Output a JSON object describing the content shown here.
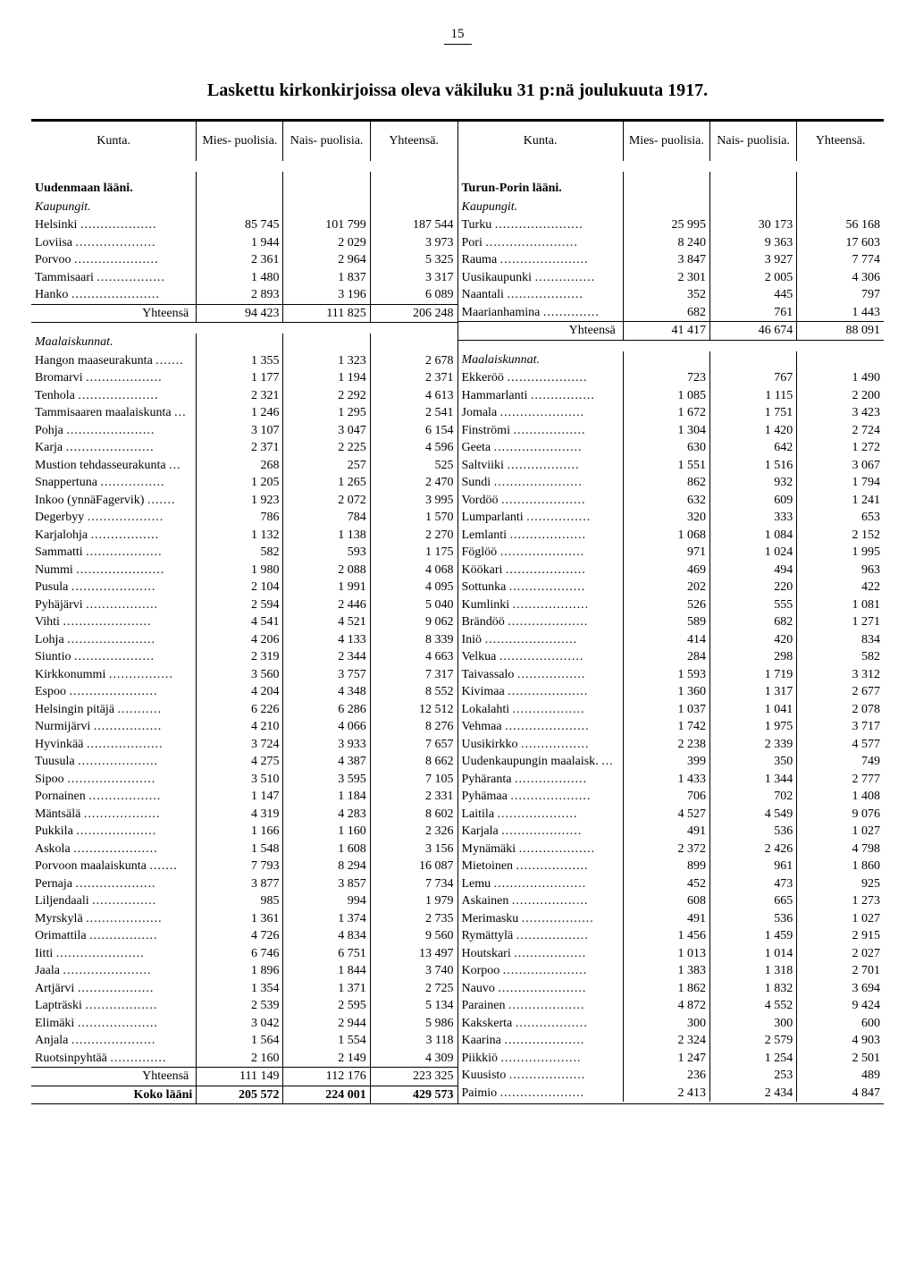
{
  "page_number": "15",
  "title": "Laskettu kirkonkirjoissa oleva väkiluku 31 p:nä joulukuuta 1917.",
  "headers": {
    "kunta": "Kunta.",
    "mies": "Mies-\npuolisia.",
    "nais": "Nais-\npuolisia.",
    "yht": "Yhteensä."
  },
  "labels": {
    "yhteensa": "Yhteensä",
    "koko": "Koko lääni"
  },
  "left": {
    "section1_head": "Uudenmaan lääni.",
    "section1_sub": "Kaupungit.",
    "cities": [
      {
        "n": "Helsinki",
        "m": "85 745",
        "f": "101 799",
        "t": "187 544"
      },
      {
        "n": "Loviisa",
        "m": "1 944",
        "f": "2 029",
        "t": "3 973"
      },
      {
        "n": "Porvoo",
        "m": "2 361",
        "f": "2 964",
        "t": "5 325"
      },
      {
        "n": "Tammisaari",
        "m": "1 480",
        "f": "1 837",
        "t": "3 317"
      },
      {
        "n": "Hanko",
        "m": "2 893",
        "f": "3 196",
        "t": "6 089"
      }
    ],
    "cities_total": {
      "m": "94 423",
      "f": "111 825",
      "t": "206 248"
    },
    "section2_sub": "Maalaiskunnat.",
    "rural": [
      {
        "n": "Hangon maaseurakunta",
        "m": "1 355",
        "f": "1 323",
        "t": "2 678"
      },
      {
        "n": "Bromarvi",
        "m": "1 177",
        "f": "1 194",
        "t": "2 371"
      },
      {
        "n": "Tenhola",
        "m": "2 321",
        "f": "2 292",
        "t": "4 613"
      },
      {
        "n": "Tammisaaren maalaiskunta",
        "m": "1 246",
        "f": "1 295",
        "t": "2 541"
      },
      {
        "n": "Pohja",
        "m": "3 107",
        "f": "3 047",
        "t": "6 154"
      },
      {
        "n": "Karja",
        "m": "2 371",
        "f": "2 225",
        "t": "4 596"
      },
      {
        "n": "Mustion tehdasseurakunta",
        "m": "268",
        "f": "257",
        "t": "525"
      },
      {
        "n": "Snappertuna",
        "m": "1 205",
        "f": "1 265",
        "t": "2 470"
      },
      {
        "n": "Inkoo (ynnäFagervik)",
        "m": "1 923",
        "f": "2 072",
        "t": "3 995"
      },
      {
        "n": "Degerbyy",
        "m": "786",
        "f": "784",
        "t": "1 570"
      },
      {
        "n": "Karjalohja",
        "m": "1 132",
        "f": "1 138",
        "t": "2 270"
      },
      {
        "n": "Sammatti",
        "m": "582",
        "f": "593",
        "t": "1 175"
      },
      {
        "n": "Nummi",
        "m": "1 980",
        "f": "2 088",
        "t": "4 068"
      },
      {
        "n": "Pusula",
        "m": "2 104",
        "f": "1 991",
        "t": "4 095"
      },
      {
        "n": "Pyhäjärvi",
        "m": "2 594",
        "f": "2 446",
        "t": "5 040"
      },
      {
        "n": "Vihti",
        "m": "4 541",
        "f": "4 521",
        "t": "9 062"
      },
      {
        "n": "Lohja",
        "m": "4 206",
        "f": "4 133",
        "t": "8 339"
      },
      {
        "n": "Siuntio",
        "m": "2 319",
        "f": "2 344",
        "t": "4 663"
      },
      {
        "n": "Kirkkonummi",
        "m": "3 560",
        "f": "3 757",
        "t": "7 317"
      },
      {
        "n": "Espoo",
        "m": "4 204",
        "f": "4 348",
        "t": "8 552"
      },
      {
        "n": "Helsingin pitäjä",
        "m": "6 226",
        "f": "6 286",
        "t": "12 512"
      },
      {
        "n": "Nurmijärvi",
        "m": "4 210",
        "f": "4 066",
        "t": "8 276"
      },
      {
        "n": "Hyvinkää",
        "m": "3 724",
        "f": "3 933",
        "t": "7 657"
      },
      {
        "n": "Tuusula",
        "m": "4 275",
        "f": "4 387",
        "t": "8 662"
      },
      {
        "n": "Sipoo",
        "m": "3 510",
        "f": "3 595",
        "t": "7 105"
      },
      {
        "n": "Pornainen",
        "m": "1 147",
        "f": "1 184",
        "t": "2 331"
      },
      {
        "n": "Mäntsälä",
        "m": "4 319",
        "f": "4 283",
        "t": "8 602"
      },
      {
        "n": "Pukkila",
        "m": "1 166",
        "f": "1 160",
        "t": "2 326"
      },
      {
        "n": "Askola",
        "m": "1 548",
        "f": "1 608",
        "t": "3 156"
      },
      {
        "n": "Porvoon maalaiskunta",
        "m": "7 793",
        "f": "8 294",
        "t": "16 087"
      },
      {
        "n": "Pernaja",
        "m": "3 877",
        "f": "3 857",
        "t": "7 734"
      },
      {
        "n": "Liljendaali",
        "m": "985",
        "f": "994",
        "t": "1 979"
      },
      {
        "n": "Myrskylä",
        "m": "1 361",
        "f": "1 374",
        "t": "2 735"
      },
      {
        "n": "Orimattila",
        "m": "4 726",
        "f": "4 834",
        "t": "9 560"
      },
      {
        "n": "Iitti",
        "m": "6 746",
        "f": "6 751",
        "t": "13 497"
      },
      {
        "n": "Jaala",
        "m": "1 896",
        "f": "1 844",
        "t": "3 740"
      },
      {
        "n": "Artjärvi",
        "m": "1 354",
        "f": "1 371",
        "t": "2 725"
      },
      {
        "n": "Lapträski",
        "m": "2 539",
        "f": "2 595",
        "t": "5 134"
      },
      {
        "n": "Elimäki",
        "m": "3 042",
        "f": "2 944",
        "t": "5 986"
      },
      {
        "n": "Anjala",
        "m": "1 564",
        "f": "1 554",
        "t": "3 118"
      },
      {
        "n": "Ruotsinpyhtää",
        "m": "2 160",
        "f": "2 149",
        "t": "4 309"
      }
    ],
    "rural_total": {
      "m": "111 149",
      "f": "112 176",
      "t": "223 325"
    },
    "koko": {
      "m": "205 572",
      "f": "224 001",
      "t": "429 573"
    }
  },
  "right": {
    "section1_head": "Turun-Porin lääni.",
    "section1_sub": "Kaupungit.",
    "cities": [
      {
        "n": "Turku",
        "m": "25 995",
        "f": "30 173",
        "t": "56 168"
      },
      {
        "n": "Pori",
        "m": "8 240",
        "f": "9 363",
        "t": "17 603"
      },
      {
        "n": "Rauma",
        "m": "3 847",
        "f": "3 927",
        "t": "7 774"
      },
      {
        "n": "Uusikaupunki",
        "m": "2 301",
        "f": "2 005",
        "t": "4 306"
      },
      {
        "n": "Naantali",
        "m": "352",
        "f": "445",
        "t": "797"
      },
      {
        "n": "Maarianhamina",
        "m": "682",
        "f": "761",
        "t": "1 443"
      }
    ],
    "cities_total": {
      "m": "41 417",
      "f": "46 674",
      "t": "88 091"
    },
    "section2_sub": "Maalaiskunnat.",
    "rural": [
      {
        "n": "Ekkeröö",
        "m": "723",
        "f": "767",
        "t": "1 490"
      },
      {
        "n": "Hammarlanti",
        "m": "1 085",
        "f": "1 115",
        "t": "2 200"
      },
      {
        "n": "Jomala",
        "m": "1 672",
        "f": "1 751",
        "t": "3 423"
      },
      {
        "n": "Finströmi",
        "m": "1 304",
        "f": "1 420",
        "t": "2 724"
      },
      {
        "n": "Geeta",
        "m": "630",
        "f": "642",
        "t": "1 272"
      },
      {
        "n": "Saltviiki",
        "m": "1 551",
        "f": "1 516",
        "t": "3 067"
      },
      {
        "n": "Sundi",
        "m": "862",
        "f": "932",
        "t": "1 794"
      },
      {
        "n": "Vordöö",
        "m": "632",
        "f": "609",
        "t": "1 241"
      },
      {
        "n": "Lumparlanti",
        "m": "320",
        "f": "333",
        "t": "653"
      },
      {
        "n": "Lemlanti",
        "m": "1 068",
        "f": "1 084",
        "t": "2 152"
      },
      {
        "n": "Föglöö",
        "m": "971",
        "f": "1 024",
        "t": "1 995"
      },
      {
        "n": "Köökari",
        "m": "469",
        "f": "494",
        "t": "963"
      },
      {
        "n": "Sottunka",
        "m": "202",
        "f": "220",
        "t": "422"
      },
      {
        "n": "Kumlinki",
        "m": "526",
        "f": "555",
        "t": "1 081"
      },
      {
        "n": "Brändöö",
        "m": "589",
        "f": "682",
        "t": "1 271"
      },
      {
        "n": "Iniö",
        "m": "414",
        "f": "420",
        "t": "834"
      },
      {
        "n": "Velkua",
        "m": "284",
        "f": "298",
        "t": "582"
      },
      {
        "n": "Taivassalo",
        "m": "1 593",
        "f": "1 719",
        "t": "3 312"
      },
      {
        "n": "Kivimaa",
        "m": "1 360",
        "f": "1 317",
        "t": "2 677"
      },
      {
        "n": "Lokalahti",
        "m": "1 037",
        "f": "1 041",
        "t": "2 078"
      },
      {
        "n": "Vehmaa",
        "m": "1 742",
        "f": "1 975",
        "t": "3 717"
      },
      {
        "n": "Uusikirkko",
        "m": "2 238",
        "f": "2 339",
        "t": "4 577"
      },
      {
        "n": "Uudenkaupungin maalaisk.",
        "m": "399",
        "f": "350",
        "t": "749"
      },
      {
        "n": "Pyhäranta",
        "m": "1 433",
        "f": "1 344",
        "t": "2 777"
      },
      {
        "n": "Pyhämaa",
        "m": "706",
        "f": "702",
        "t": "1 408"
      },
      {
        "n": "Laitila",
        "m": "4 527",
        "f": "4 549",
        "t": "9 076"
      },
      {
        "n": "Karjala",
        "m": "491",
        "f": "536",
        "t": "1 027"
      },
      {
        "n": "Mynämäki",
        "m": "2 372",
        "f": "2 426",
        "t": "4 798"
      },
      {
        "n": "Mietoinen",
        "m": "899",
        "f": "961",
        "t": "1 860"
      },
      {
        "n": "Lemu",
        "m": "452",
        "f": "473",
        "t": "925"
      },
      {
        "n": "Askainen",
        "m": "608",
        "f": "665",
        "t": "1 273"
      },
      {
        "n": "Merimasku",
        "m": "491",
        "f": "536",
        "t": "1 027"
      },
      {
        "n": "Rymättylä",
        "m": "1 456",
        "f": "1 459",
        "t": "2 915"
      },
      {
        "n": "Houtskari",
        "m": "1 013",
        "f": "1 014",
        "t": "2 027"
      },
      {
        "n": "Korpoo",
        "m": "1 383",
        "f": "1 318",
        "t": "2 701"
      },
      {
        "n": "Nauvo",
        "m": "1 862",
        "f": "1 832",
        "t": "3 694"
      },
      {
        "n": "Parainen",
        "m": "4 872",
        "f": "4 552",
        "t": "9 424"
      },
      {
        "n": "Kakskerta",
        "m": "300",
        "f": "300",
        "t": "600"
      },
      {
        "n": "Kaarina",
        "m": "2 324",
        "f": "2 579",
        "t": "4 903"
      },
      {
        "n": "Piikkiö",
        "m": "1 247",
        "f": "1 254",
        "t": "2 501"
      },
      {
        "n": "Kuusisto",
        "m": "236",
        "f": "253",
        "t": "489"
      },
      {
        "n": "Paimio",
        "m": "2 413",
        "f": "2 434",
        "t": "4 847"
      }
    ]
  }
}
